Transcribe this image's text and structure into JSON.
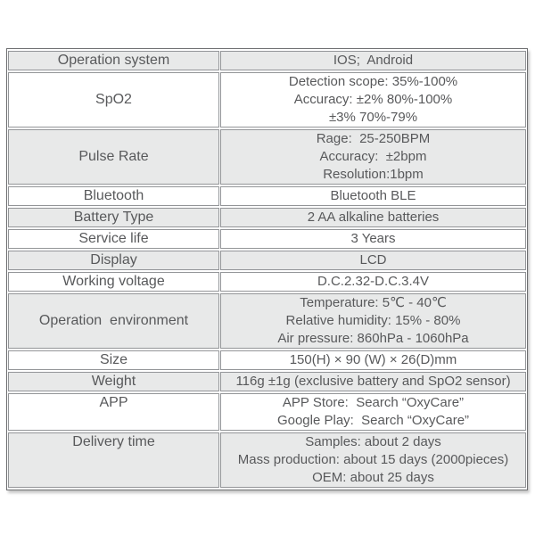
{
  "colors": {
    "row_shade": "#e8e9e9",
    "row_white": "#ffffff",
    "cell_border": "#939598",
    "outer_border": "#6e6f71",
    "text": "#58595b"
  },
  "table": {
    "rows": [
      {
        "label": "Operation system",
        "values": [
          "IOS;  Android"
        ]
      },
      {
        "label": "SpO2",
        "values": [
          "Detection scope: 35%-100%",
          "Accuracy: ±2% 80%-100%",
          "±3% 70%-79%"
        ]
      },
      {
        "label": "Pulse Rate",
        "values": [
          "Rage:  25-250BPM",
          "Accuracy:  ±2bpm",
          "Resolution:1bpm"
        ]
      },
      {
        "label": "Bluetooth",
        "values": [
          "Bluetooth BLE"
        ]
      },
      {
        "label": "Battery Type",
        "values": [
          "2 AA alkaline batteries"
        ]
      },
      {
        "label": "Service life",
        "values": [
          "3 Years"
        ]
      },
      {
        "label": "Display",
        "values": [
          "LCD"
        ]
      },
      {
        "label": "Working voltage",
        "values": [
          "D.C.2.32-D.C.3.4V"
        ]
      },
      {
        "label": "Operation  environment",
        "values": [
          "Temperature: 5℃ - 40℃",
          "Relative humidity: 15% - 80%",
          "Air pressure: 860hPa - 1060hPa"
        ]
      },
      {
        "label": "Size",
        "values": [
          "150(H) × 90 (W) × 26(D)mm"
        ]
      },
      {
        "label": "Weight",
        "values": [
          "116g ±1g (exclusive battery and SpO2 sensor)"
        ]
      },
      {
        "label": "APP",
        "values": [
          "APP Store:  Search “OxyCare”",
          "Google Play:  Search “OxyCare”"
        ]
      },
      {
        "label": "Delivery time",
        "values": [
          "Samples: about 2 days",
          "Mass production: about 15 days (2000pieces)",
          "OEM: about 25 days"
        ]
      }
    ]
  }
}
